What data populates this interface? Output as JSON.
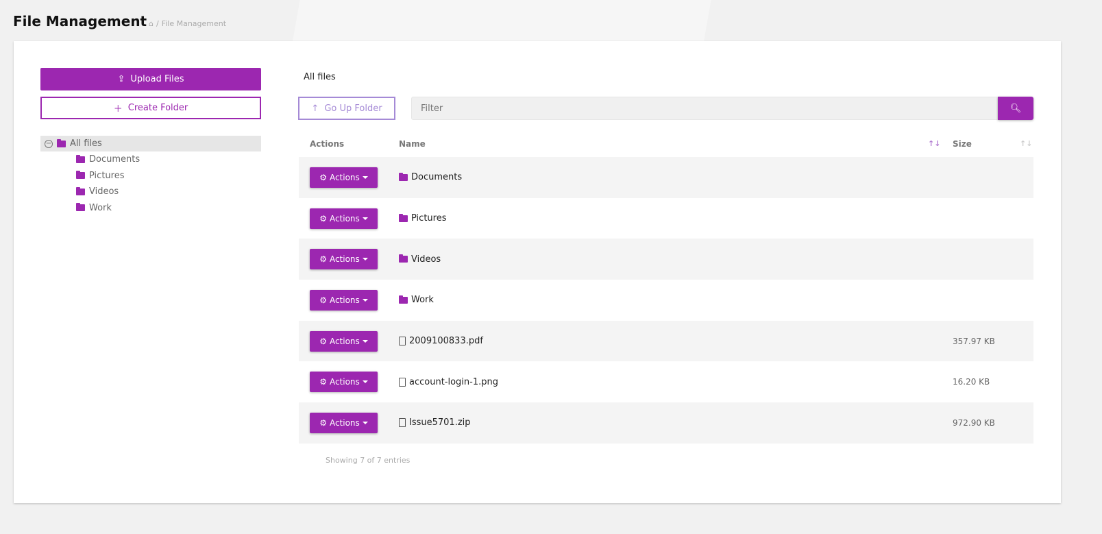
{
  "page": {
    "title": "File Management",
    "breadcrumb": {
      "home_icon": "home-icon",
      "current": "File Management"
    }
  },
  "left": {
    "upload_label": "Upload Files",
    "create_folder_label": "Create Folder",
    "tree": {
      "root": "All files",
      "children": [
        "Documents",
        "Pictures",
        "Videos",
        "Work"
      ]
    }
  },
  "main": {
    "current_folder": "All files",
    "go_up_label": "Go Up Folder",
    "filter_placeholder": "Filter",
    "columns": {
      "actions": "Actions",
      "name": "Name",
      "size": "Size"
    },
    "action_label": "Actions",
    "rows": [
      {
        "name": "Documents",
        "type": "folder",
        "size": ""
      },
      {
        "name": "Pictures",
        "type": "folder",
        "size": ""
      },
      {
        "name": "Videos",
        "type": "folder",
        "size": ""
      },
      {
        "name": "Work",
        "type": "folder",
        "size": ""
      },
      {
        "name": "2009100833.pdf",
        "type": "pdf",
        "size": "357.97 KB"
      },
      {
        "name": "account-login-1.png",
        "type": "image",
        "size": "16.20 KB"
      },
      {
        "name": "Issue5701.zip",
        "type": "archive",
        "size": "972.90 KB"
      }
    ],
    "footer": "Showing 7 of 7 entries"
  },
  "colors": {
    "accent": "#9c27b0",
    "secondary": "#a58ad6"
  }
}
